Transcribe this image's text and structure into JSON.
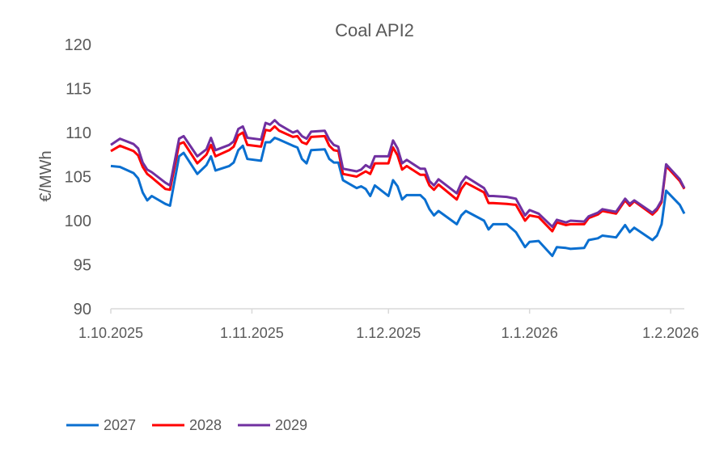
{
  "chart_data": {
    "type": "line",
    "title": "Coal API2",
    "xlabel": "",
    "ylabel": "€/MWh",
    "ylim": [
      90,
      120
    ],
    "yticks": [
      90,
      95,
      100,
      105,
      110,
      115,
      120
    ],
    "x_unit": "days since 1.10.2025",
    "xlim": [
      0,
      126
    ],
    "xticks": [
      {
        "day": 0,
        "label": "1.10.2025"
      },
      {
        "day": 31,
        "label": "1.11.2025"
      },
      {
        "day": 61,
        "label": "1.12.2025"
      },
      {
        "day": 92,
        "label": "1.1.2026"
      },
      {
        "day": 123,
        "label": "1.2.2026"
      }
    ],
    "grid": false,
    "legend_position": "bottom-left",
    "x": [
      0,
      2,
      5,
      6,
      7,
      8,
      9,
      12,
      13,
      15,
      16,
      19,
      21,
      22,
      23,
      26,
      27,
      28,
      29,
      30,
      33,
      34,
      35,
      36,
      37,
      40,
      41,
      42,
      43,
      44,
      47,
      48,
      49,
      50,
      51,
      54,
      55,
      56,
      57,
      58,
      61,
      62,
      63,
      64,
      65,
      68,
      69,
      70,
      71,
      72,
      76,
      77,
      78,
      82,
      83,
      84,
      87,
      89,
      91,
      92,
      94,
      97,
      98,
      100,
      101,
      104,
      105,
      107,
      108,
      111,
      113,
      114,
      115,
      119,
      120,
      121,
      122,
      125,
      126
    ],
    "series": [
      {
        "name": "2027",
        "color": "#0a6fd0",
        "values": [
          106.2,
          106.1,
          105.4,
          104.8,
          103.2,
          102.3,
          102.8,
          101.9,
          101.7,
          107.3,
          107.7,
          105.3,
          106.3,
          107.3,
          105.7,
          106.2,
          106.6,
          108.0,
          108.5,
          107.0,
          106.8,
          108.9,
          108.9,
          109.4,
          109.2,
          108.5,
          108.3,
          107.0,
          106.5,
          108.0,
          108.1,
          107.0,
          106.6,
          106.6,
          104.6,
          103.7,
          103.9,
          103.6,
          102.8,
          104.0,
          102.8,
          104.6,
          103.9,
          102.4,
          102.9,
          102.9,
          102.4,
          101.3,
          100.6,
          101.1,
          99.6,
          100.6,
          101.1,
          100.0,
          99.0,
          99.6,
          99.6,
          98.7,
          97.0,
          97.6,
          97.7,
          96.0,
          97.0,
          96.9,
          96.8,
          96.9,
          97.8,
          98.0,
          98.3,
          98.1,
          99.5,
          98.7,
          99.2,
          97.8,
          98.3,
          99.6,
          103.4,
          101.8,
          100.8
        ]
      },
      {
        "name": "2028",
        "color": "#ff0000",
        "values": [
          107.9,
          108.5,
          107.9,
          107.4,
          106.1,
          105.3,
          104.9,
          103.6,
          103.5,
          108.7,
          108.9,
          106.5,
          107.5,
          108.6,
          107.3,
          108.0,
          108.4,
          109.7,
          110.0,
          108.6,
          108.4,
          110.3,
          110.2,
          110.7,
          110.2,
          109.5,
          109.6,
          108.9,
          108.7,
          109.5,
          109.6,
          108.5,
          108.0,
          107.9,
          105.3,
          105.0,
          105.3,
          105.6,
          105.3,
          106.5,
          106.5,
          108.3,
          107.4,
          105.8,
          106.2,
          105.2,
          105.2,
          104.0,
          103.5,
          104.1,
          102.4,
          103.6,
          104.3,
          103.2,
          102.0,
          102.0,
          101.9,
          101.8,
          100.0,
          100.6,
          100.4,
          98.8,
          99.8,
          99.5,
          99.6,
          99.6,
          100.3,
          100.7,
          101.1,
          100.8,
          102.3,
          101.7,
          102.2,
          100.7,
          101.2,
          102.1,
          106.2,
          104.5,
          103.6
        ]
      },
      {
        "name": "2029",
        "color": "#7030a0",
        "values": [
          108.6,
          109.3,
          108.7,
          108.2,
          106.6,
          105.8,
          105.5,
          104.3,
          104.0,
          109.3,
          109.6,
          107.3,
          108.1,
          109.4,
          108.0,
          108.6,
          109.0,
          110.4,
          110.7,
          109.4,
          109.2,
          111.1,
          110.9,
          111.4,
          110.9,
          110.0,
          110.2,
          109.6,
          109.3,
          110.1,
          110.2,
          109.2,
          108.6,
          108.4,
          105.9,
          105.6,
          105.8,
          106.3,
          106.0,
          107.3,
          107.3,
          109.1,
          108.2,
          106.5,
          106.9,
          105.9,
          105.9,
          104.5,
          104.0,
          104.7,
          103.1,
          104.3,
          105.0,
          103.7,
          102.8,
          102.8,
          102.7,
          102.5,
          100.6,
          101.2,
          100.8,
          99.3,
          100.1,
          99.8,
          100.0,
          99.9,
          100.5,
          100.9,
          101.3,
          101.0,
          102.5,
          101.9,
          102.3,
          100.9,
          101.4,
          102.3,
          106.4,
          104.7,
          103.7
        ]
      }
    ]
  }
}
